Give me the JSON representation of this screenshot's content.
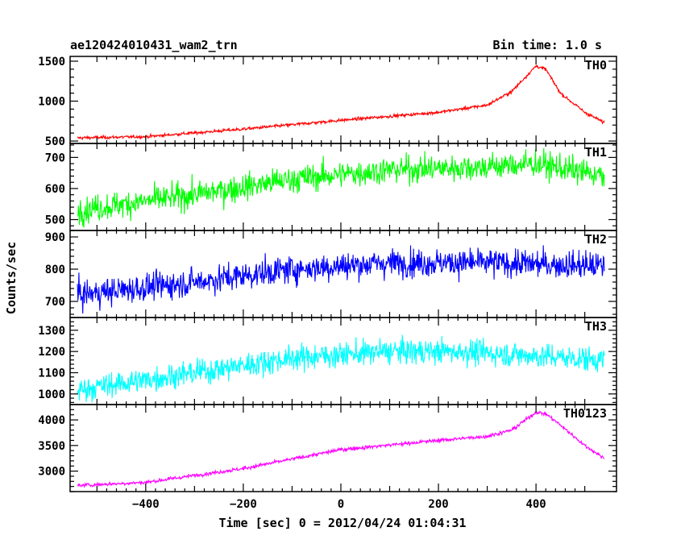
{
  "header": {
    "title": "ae120424010431_wam2_trn",
    "bin_time": "Bin time: 1.0 s"
  },
  "chart_data": {
    "type": "line",
    "xlabel": "Time [sec] 0 = 2012/04/24 01:04:31",
    "ylabel": "Counts/sec",
    "xlim": [
      -555,
      565
    ],
    "x_ticks": [
      -400,
      -200,
      0,
      200,
      400
    ],
    "x_tick_labels": [
      "−400",
      "−200",
      "0",
      "200",
      "400"
    ],
    "x_range": [
      -540,
      540
    ],
    "panels": [
      {
        "name": "TH0",
        "color": "#ff0000",
        "ylim": [
          470,
          1560
        ],
        "yticks": [
          500,
          1000,
          1500
        ],
        "noise": 25,
        "curve": [
          [
            -540,
            540
          ],
          [
            -400,
            555
          ],
          [
            -200,
            650
          ],
          [
            0,
            760
          ],
          [
            200,
            860
          ],
          [
            300,
            950
          ],
          [
            350,
            1120
          ],
          [
            400,
            1440
          ],
          [
            420,
            1400
          ],
          [
            450,
            1100
          ],
          [
            500,
            860
          ],
          [
            540,
            730
          ]
        ]
      },
      {
        "name": "TH1",
        "color": "#00ff00",
        "ylim": [
          465,
          745
        ],
        "yticks": [
          500,
          600,
          700
        ],
        "noise": 55,
        "curve": [
          [
            -540,
            530
          ],
          [
            -300,
            580
          ],
          [
            -100,
            630
          ],
          [
            100,
            660
          ],
          [
            300,
            670
          ],
          [
            400,
            680
          ],
          [
            540,
            640
          ]
        ]
      },
      {
        "name": "TH2",
        "color": "#0000ff",
        "ylim": [
          650,
          920
        ],
        "yticks": [
          700,
          800,
          900
        ],
        "noise": 55,
        "curve": [
          [
            -540,
            720
          ],
          [
            -300,
            760
          ],
          [
            -100,
            800
          ],
          [
            100,
            820
          ],
          [
            300,
            820
          ],
          [
            540,
            810
          ]
        ]
      },
      {
        "name": "TH3",
        "color": "#00ffff",
        "ylim": [
          950,
          1360
        ],
        "yticks": [
          1000,
          1100,
          1200,
          1300
        ],
        "noise": 75,
        "curve": [
          [
            -540,
            1020
          ],
          [
            -300,
            1100
          ],
          [
            -100,
            1170
          ],
          [
            100,
            1200
          ],
          [
            250,
            1200
          ],
          [
            540,
            1160
          ]
        ]
      },
      {
        "name": "TH0123",
        "color": "#ff00ff",
        "ylim": [
          2600,
          4300
        ],
        "yticks": [
          3000,
          3500,
          4000
        ],
        "noise": 45,
        "curve": [
          [
            -540,
            2720
          ],
          [
            -400,
            2780
          ],
          [
            -200,
            3050
          ],
          [
            0,
            3420
          ],
          [
            200,
            3600
          ],
          [
            300,
            3680
          ],
          [
            350,
            3800
          ],
          [
            400,
            4150
          ],
          [
            420,
            4120
          ],
          [
            450,
            3900
          ],
          [
            500,
            3500
          ],
          [
            540,
            3250
          ]
        ]
      }
    ]
  }
}
